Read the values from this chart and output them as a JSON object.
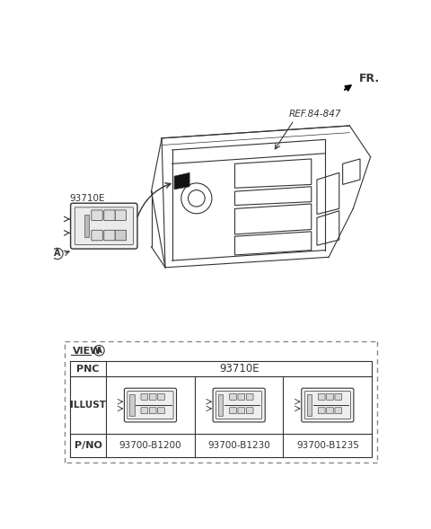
{
  "bg_color": "#ffffff",
  "fr_label": "FR.",
  "ref_label": "REF.84-847",
  "part_label": "93710E",
  "view_label": "VIEW",
  "pnc_label": "PNC",
  "pnc_value": "93710E",
  "illust_label": "ILLUST",
  "pno_label": "P/NO",
  "part_numbers": [
    "93700-B1200",
    "93700-B1230",
    "93700-B1235"
  ],
  "line_color": "#333333",
  "dashed_border_color": "#888888",
  "table_border_color": "#333333"
}
